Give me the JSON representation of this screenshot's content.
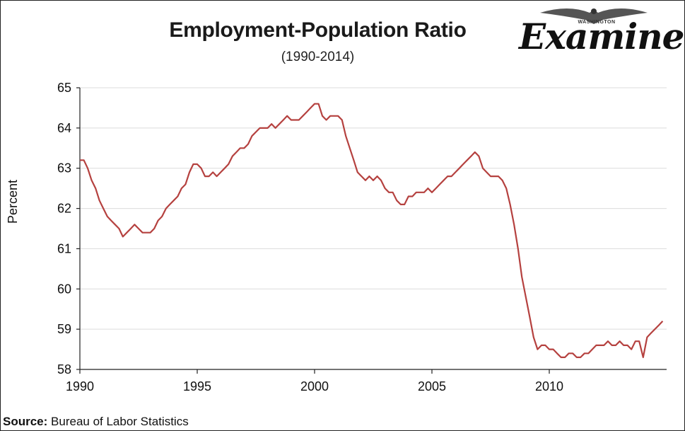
{
  "chart_data": {
    "type": "line",
    "title": "Employment-Population Ratio",
    "subtitle": "(1990-2014)",
    "xlabel": "",
    "ylabel": "Percent",
    "xlim": [
      1990,
      2015
    ],
    "ylim": [
      58,
      65
    ],
    "x_ticks": [
      "1990",
      "1995",
      "2000",
      "2005",
      "2010"
    ],
    "y_ticks": [
      "58",
      "59",
      "60",
      "61",
      "62",
      "63",
      "64",
      "65"
    ],
    "grid": "horizontal",
    "line_color": "#b5413f",
    "series": [
      {
        "x": [
          1990.0,
          1990.17,
          1990.33,
          1990.5,
          1990.67,
          1990.83,
          1991.0,
          1991.17,
          1991.33,
          1991.5,
          1991.67,
          1991.83,
          1992.0,
          1992.17,
          1992.33,
          1992.5,
          1992.67,
          1992.83,
          1993.0,
          1993.17,
          1993.33,
          1993.5,
          1993.67,
          1993.83,
          1994.0,
          1994.17,
          1994.33,
          1994.5,
          1994.67,
          1994.83,
          1995.0,
          1995.17,
          1995.33,
          1995.5,
          1995.67,
          1995.83,
          1996.0,
          1996.17,
          1996.33,
          1996.5,
          1996.67,
          1996.83,
          1997.0,
          1997.17,
          1997.33,
          1997.5,
          1997.67,
          1997.83,
          1998.0,
          1998.17,
          1998.33,
          1998.5,
          1998.67,
          1998.83,
          1999.0,
          1999.17,
          1999.33,
          1999.5,
          1999.67,
          1999.83,
          2000.0,
          2000.17,
          2000.33,
          2000.5,
          2000.67,
          2000.83,
          2001.0,
          2001.17,
          2001.33,
          2001.5,
          2001.67,
          2001.83,
          2002.0,
          2002.17,
          2002.33,
          2002.5,
          2002.67,
          2002.83,
          2003.0,
          2003.17,
          2003.33,
          2003.5,
          2003.67,
          2003.83,
          2004.0,
          2004.17,
          2004.33,
          2004.5,
          2004.67,
          2004.83,
          2005.0,
          2005.17,
          2005.33,
          2005.5,
          2005.67,
          2005.83,
          2006.0,
          2006.17,
          2006.33,
          2006.5,
          2006.67,
          2006.83,
          2007.0,
          2007.17,
          2007.33,
          2007.5,
          2007.67,
          2007.83,
          2008.0,
          2008.17,
          2008.33,
          2008.5,
          2008.67,
          2008.83,
          2009.0,
          2009.17,
          2009.33,
          2009.5,
          2009.67,
          2009.83,
          2010.0,
          2010.17,
          2010.33,
          2010.5,
          2010.67,
          2010.83,
          2011.0,
          2011.17,
          2011.33,
          2011.5,
          2011.67,
          2011.83,
          2012.0,
          2012.17,
          2012.33,
          2012.5,
          2012.67,
          2012.83,
          2013.0,
          2013.17,
          2013.33,
          2013.5,
          2013.67,
          2013.83,
          2014.0,
          2014.17,
          2014.33,
          2014.5,
          2014.67,
          2014.83
        ],
        "values": [
          63.2,
          63.2,
          63.0,
          62.7,
          62.5,
          62.2,
          62.0,
          61.8,
          61.7,
          61.6,
          61.5,
          61.3,
          61.4,
          61.5,
          61.6,
          61.5,
          61.4,
          61.4,
          61.4,
          61.5,
          61.7,
          61.8,
          62.0,
          62.1,
          62.2,
          62.3,
          62.5,
          62.6,
          62.9,
          63.1,
          63.1,
          63.0,
          62.8,
          62.8,
          62.9,
          62.8,
          62.9,
          63.0,
          63.1,
          63.3,
          63.4,
          63.5,
          63.5,
          63.6,
          63.8,
          63.9,
          64.0,
          64.0,
          64.0,
          64.1,
          64.0,
          64.1,
          64.2,
          64.3,
          64.2,
          64.2,
          64.2,
          64.3,
          64.4,
          64.5,
          64.6,
          64.6,
          64.3,
          64.2,
          64.3,
          64.3,
          64.3,
          64.2,
          63.8,
          63.5,
          63.2,
          62.9,
          62.8,
          62.7,
          62.8,
          62.7,
          62.8,
          62.7,
          62.5,
          62.4,
          62.4,
          62.2,
          62.1,
          62.1,
          62.3,
          62.3,
          62.4,
          62.4,
          62.4,
          62.5,
          62.4,
          62.5,
          62.6,
          62.7,
          62.8,
          62.8,
          62.9,
          63.0,
          63.1,
          63.2,
          63.3,
          63.4,
          63.3,
          63.0,
          62.9,
          62.8,
          62.8,
          62.8,
          62.7,
          62.5,
          62.1,
          61.6,
          61.0,
          60.3,
          59.8,
          59.3,
          58.8,
          58.5,
          58.6,
          58.6,
          58.5,
          58.5,
          58.4,
          58.3,
          58.3,
          58.4,
          58.4,
          58.3,
          58.3,
          58.4,
          58.4,
          58.5,
          58.6,
          58.6,
          58.6,
          58.7,
          58.6,
          58.6,
          58.7,
          58.6,
          58.6,
          58.5,
          58.7,
          58.7,
          58.3,
          58.8,
          58.9,
          59.0,
          59.1,
          59.2
        ]
      }
    ]
  },
  "source": {
    "label": "Source:",
    "text": "Bureau of Labor Statistics"
  },
  "logo": {
    "top_text": "WASHINGTON",
    "word": "Examiner"
  }
}
